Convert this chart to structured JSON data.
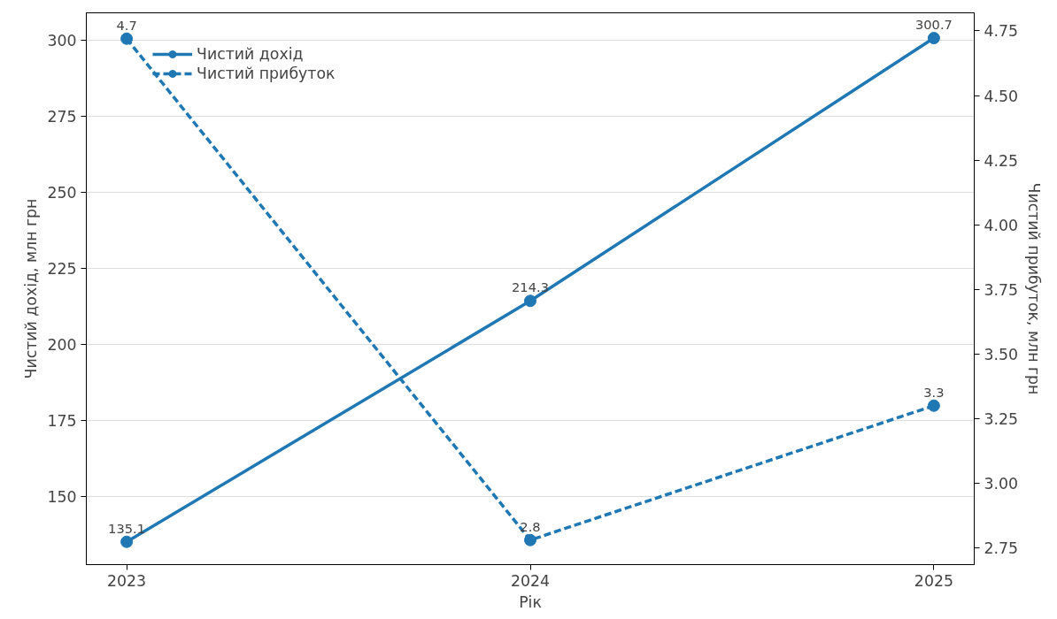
{
  "chart_data": {
    "type": "line",
    "xlabel": "Рік",
    "ylabel": "Чистий дохід, млн грн",
    "y2label": "Чистий прибуток, млн грн",
    "categories": [
      "2023",
      "2024",
      "2025"
    ],
    "series": [
      {
        "name": "Чистий дохід",
        "color": "#1f77b4",
        "values": [
          135.1,
          214.3,
          300.7
        ],
        "line_style": "solid",
        "data_labels": true
      },
      {
        "name": "Чистий прибуток",
        "color": "#1f77b4",
        "values": [
          4.72,
          2.78,
          3.3
        ],
        "axis": "y2",
        "line_style": "dashed",
        "value_labels": [
          "4.7",
          "2.8",
          "3.3"
        ]
      }
    ],
    "ylim": [
      127.6,
      309
    ],
    "yticks": [
      150,
      175,
      200,
      225,
      250,
      275,
      300
    ],
    "y2lim": [
      2.685,
      4.82
    ],
    "y2ticks": [
      {
        "value": 2.75,
        "label": "2.75"
      },
      {
        "value": 3.0,
        "label": "3.00"
      },
      {
        "value": 3.25,
        "label": "3.25"
      },
      {
        "value": 3.5,
        "label": "3.50"
      },
      {
        "value": 3.75,
        "label": "3.75"
      },
      {
        "value": 4.0,
        "label": "4.00"
      },
      {
        "value": 4.25,
        "label": "4.25"
      },
      {
        "value": 4.5,
        "label": "4.50"
      },
      {
        "value": 4.75,
        "label": "4.75"
      }
    ],
    "grid": "y",
    "legend": "top left",
    "marker": "circle"
  }
}
